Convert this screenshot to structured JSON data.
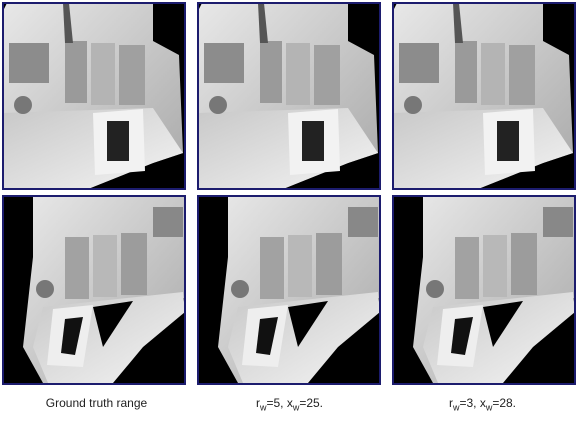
{
  "captions": [
    [
      "Ground truth range"
    ],
    [
      "r",
      "w",
      "=5, x",
      "w",
      "=25."
    ],
    [
      "r",
      "w",
      "=3, x",
      "w",
      "=28."
    ]
  ]
}
